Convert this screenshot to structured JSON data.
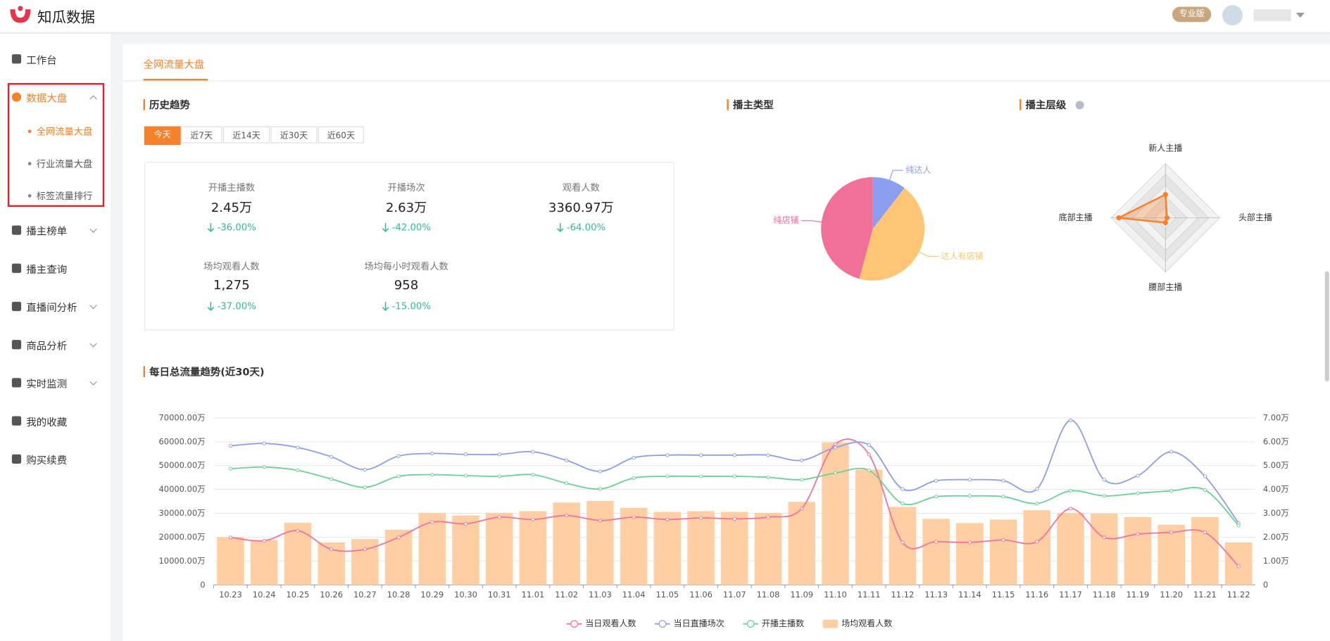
{
  "header": {
    "logo": "知瓜数据",
    "badge": "专业版"
  },
  "sidebar": [
    {
      "label": "工作台"
    },
    {
      "label": "数据大盘",
      "children": [
        "全网流量大盘",
        "行业流量大盘",
        "标签流量排行"
      ]
    },
    {
      "label": "播主榜单"
    },
    {
      "label": "播主查询"
    },
    {
      "label": "直播间分析"
    },
    {
      "label": "商品分析"
    },
    {
      "label": "实时监测"
    },
    {
      "label": "我的收藏"
    },
    {
      "label": "购买续费"
    }
  ],
  "tab": "全网流量大盘",
  "history": {
    "title": "历史趋势",
    "filters": [
      "今天",
      "近7天",
      "近14天",
      "近30天",
      "近60天"
    ],
    "stats": [
      {
        "label": "开播主播数",
        "value": "2.45万",
        "change": "-36.00%"
      },
      {
        "label": "开播场次",
        "value": "2.63万",
        "change": "-42.00%"
      },
      {
        "label": "观看人数",
        "value": "3360.97万",
        "change": "-64.00%"
      },
      {
        "label": "场均观看人数",
        "value": "1,275",
        "change": "-37.00%"
      },
      {
        "label": "场均每小时观看人数",
        "value": "958",
        "change": "-15.00%"
      }
    ]
  },
  "chart_data": [
    {
      "type": "pie",
      "title": "播主类型",
      "categories": [
        "纯达人",
        "达人有店铺",
        "纯店铺"
      ],
      "values": [
        10.5,
        43.7,
        45.8
      ],
      "colors": [
        "#8c9ef0",
        "#fec574",
        "#f07098"
      ]
    },
    {
      "type": "radar",
      "title": "播主层级",
      "categories": [
        "新人主播",
        "头部主播",
        "腰部主播",
        "底部主播"
      ],
      "values": [
        43,
        3,
        9,
        86
      ],
      "rlim": [
        0,
        100
      ],
      "color": "#f5812a"
    },
    {
      "type": "combo",
      "title": "每日总流量趋势(近30天)",
      "categories": [
        "10.23",
        "10.24",
        "10.25",
        "10.26",
        "10.27",
        "10.28",
        "10.29",
        "10.30",
        "10.31",
        "11.01",
        "11.02",
        "11.03",
        "11.04",
        "11.05",
        "11.06",
        "11.07",
        "11.08",
        "11.09",
        "11.10",
        "11.11",
        "11.12",
        "11.13",
        "11.14",
        "11.15",
        "11.16",
        "11.17",
        "11.18",
        "11.19",
        "11.20",
        "11.21",
        "11.22"
      ],
      "ylim": [
        0,
        70000
      ],
      "yticks": [
        0,
        {
          "value": 10000,
          "label": "10000.00万"
        },
        {
          "value": 20000,
          "label": "20000.00万"
        },
        {
          "value": 30000,
          "label": "30000.00万"
        },
        {
          "value": 40000,
          "label": "40000.00万"
        },
        {
          "value": 50000,
          "label": "50000.00万"
        },
        {
          "value": 60000,
          "label": "60000.00万"
        },
        {
          "value": 70000,
          "label": "70000.00万"
        }
      ],
      "y2lim": [
        0,
        7
      ],
      "y2ticks": [
        0,
        {
          "value": 1,
          "label": "1.00万"
        },
        {
          "value": 2,
          "label": "2.00万"
        },
        {
          "value": 3,
          "label": "3.00万"
        },
        {
          "value": 4,
          "label": "4.00万"
        },
        {
          "value": 5,
          "label": "5.00万"
        },
        {
          "value": 6,
          "label": "6.00万"
        },
        {
          "value": 7,
          "label": "7.00万"
        }
      ],
      "grid": true,
      "legend": "bottom",
      "series": [
        {
          "name": "当日观看人数",
          "kind": "line",
          "color": "#f0739d",
          "values": [
            19900,
            18500,
            22700,
            14900,
            14900,
            19900,
            26300,
            25600,
            28400,
            27400,
            29100,
            27000,
            28400,
            27400,
            28100,
            27700,
            28400,
            32000,
            59000,
            54700,
            17800,
            18100,
            17800,
            18800,
            18100,
            32000,
            19900,
            21300,
            22000,
            22000,
            7800
          ]
        },
        {
          "name": "当日直播场次",
          "kind": "line",
          "color": "#8c9ee8",
          "axis": "y2",
          "values": [
            5.83,
            5.93,
            5.76,
            5.37,
            4.83,
            5.4,
            5.51,
            5.47,
            5.47,
            5.58,
            5.22,
            4.76,
            5.33,
            5.44,
            5.44,
            5.44,
            5.44,
            5.22,
            5.76,
            5.86,
            4.02,
            4.37,
            4.41,
            4.37,
            4.02,
            6.9,
            4.41,
            4.58,
            5.58,
            4.55,
            2.59
          ]
        },
        {
          "name": "开播主播数",
          "kind": "line",
          "color": "#6ccf94",
          "axis": "y2",
          "values": [
            4.87,
            4.94,
            4.8,
            4.44,
            4.09,
            4.55,
            4.62,
            4.58,
            4.55,
            4.62,
            4.26,
            4.02,
            4.48,
            4.55,
            4.55,
            4.55,
            4.51,
            4.41,
            4.69,
            4.8,
            3.41,
            3.7,
            3.73,
            3.7,
            3.41,
            3.94,
            3.73,
            3.84,
            3.94,
            3.98,
            2.49
          ]
        },
        {
          "name": "场均观看人数",
          "kind": "bar",
          "color": "#ffcfa3",
          "values": [
            20000,
            18800,
            26000,
            17800,
            19200,
            23100,
            30200,
            29100,
            30200,
            30900,
            34500,
            35200,
            32300,
            30600,
            30900,
            30600,
            30200,
            34800,
            59700,
            48300,
            32700,
            27700,
            25900,
            27400,
            31300,
            30200,
            29900,
            28400,
            25200,
            28400,
            17800
          ]
        }
      ]
    }
  ]
}
